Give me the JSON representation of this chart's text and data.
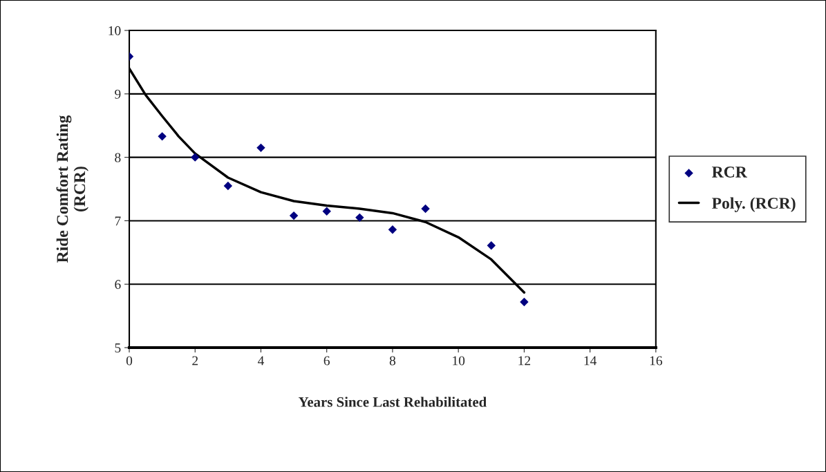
{
  "chart_data": {
    "type": "scatter",
    "xlabel": "Years Since Last Rehabilitated",
    "ylabel": "Ride Comfort Rating\n(RCR)",
    "xlim": [
      0,
      16
    ],
    "xticks": [
      0,
      2,
      4,
      6,
      8,
      10,
      12,
      14,
      16
    ],
    "ylim": [
      5,
      10
    ],
    "yticks": [
      5,
      6,
      7,
      8,
      9,
      10
    ],
    "grid": "y",
    "legend": "right",
    "marker": "diamond",
    "series": [
      {
        "name": "RCR",
        "color": "#000080",
        "x": [
          0,
          1,
          2,
          3,
          4,
          5,
          6,
          7,
          8,
          9,
          11,
          12
        ],
        "values": [
          9.59,
          8.33,
          8.0,
          7.55,
          8.15,
          7.08,
          7.15,
          7.05,
          6.86,
          7.19,
          6.61,
          5.72
        ]
      },
      {
        "name": "Poly. (RCR)",
        "type": "line",
        "color": "#000000",
        "line_style": "solid",
        "marker": "none",
        "x": [
          0,
          0.5,
          1,
          1.5,
          2,
          3,
          4,
          5,
          6,
          7,
          8,
          9,
          10,
          11,
          12
        ],
        "values": [
          9.4,
          8.98,
          8.65,
          8.33,
          8.06,
          7.68,
          7.45,
          7.31,
          7.24,
          7.19,
          7.12,
          6.98,
          6.74,
          6.39,
          5.87
        ]
      }
    ]
  }
}
